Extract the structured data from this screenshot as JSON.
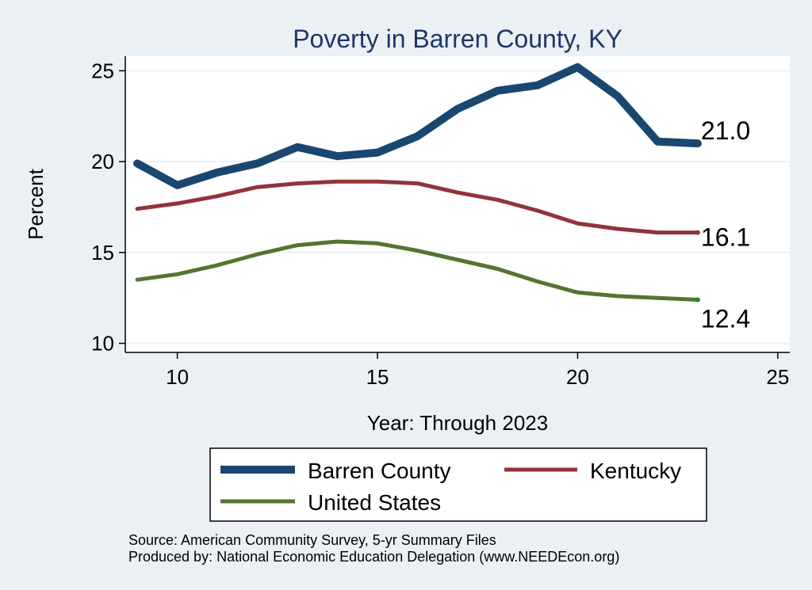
{
  "chart_data": {
    "type": "line",
    "title": "Poverty in Barren County, KY",
    "xlabel": "Year: Through 2023",
    "ylabel": "Percent",
    "xlim": [
      8.7,
      25.3
    ],
    "ylim": [
      9.5,
      25.8
    ],
    "xticks": [
      10,
      15,
      20,
      25
    ],
    "yticks": [
      10,
      15,
      20,
      25
    ],
    "x": [
      9,
      10,
      11,
      12,
      13,
      14,
      15,
      16,
      17,
      18,
      19,
      20,
      21,
      22,
      23
    ],
    "series": [
      {
        "name": "Barren County",
        "color": "#1a476f",
        "values": [
          19.9,
          18.7,
          19.4,
          19.9,
          20.8,
          20.3,
          20.5,
          21.4,
          22.9,
          23.9,
          24.2,
          25.2,
          23.6,
          21.1,
          21.0
        ],
        "end_label": "21.0"
      },
      {
        "name": "Kentucky",
        "color": "#90353b",
        "values": [
          17.4,
          17.7,
          18.1,
          18.6,
          18.8,
          18.9,
          18.9,
          18.8,
          18.3,
          17.9,
          17.3,
          16.6,
          16.3,
          16.1,
          16.1
        ],
        "end_label": "16.1"
      },
      {
        "name": "United States",
        "color": "#55752f",
        "values": [
          13.5,
          13.8,
          14.3,
          14.9,
          15.4,
          15.6,
          15.5,
          15.1,
          14.6,
          14.1,
          13.4,
          12.8,
          12.6,
          12.5,
          12.4
        ],
        "end_label": "12.4"
      }
    ],
    "legend_position": "bottom",
    "notes": [
      "Source: American Community Survey, 5-yr Summary Files",
      "Produced by: National Economic Education Delegation (www.NEEDEcon.org)"
    ]
  }
}
